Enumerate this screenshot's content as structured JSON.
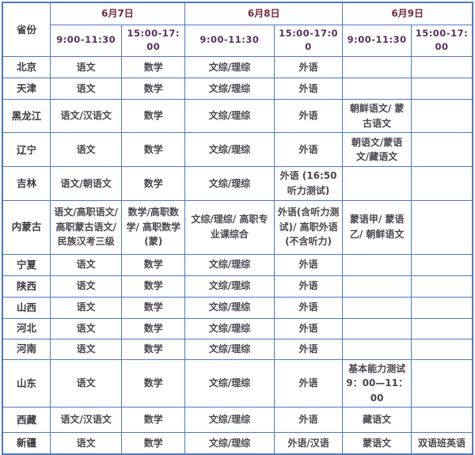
{
  "colors": {
    "border_blue": "#4a7ac2",
    "date_header_text": "#73293c",
    "time_header_text": "#55305a",
    "province_text": "#3d3742",
    "body_text": "#4a4650",
    "background": "#ffffff"
  },
  "table": {
    "corner_label": "省份",
    "date_groups": [
      {
        "label": "6月7日",
        "times": [
          "9:00-11:30",
          "15:00-17:00"
        ]
      },
      {
        "label": "6月8日",
        "times": [
          "9:00-11:30",
          "15:00-17:00"
        ]
      },
      {
        "label": "6月9日",
        "times": [
          "9:00-11:30",
          "15:00-17:00"
        ]
      }
    ],
    "rows": [
      {
        "province": "北京",
        "cells": [
          "语文",
          "数学",
          "文综/理综",
          "外语",
          "",
          ""
        ]
      },
      {
        "province": "天津",
        "cells": [
          "语文",
          "数学",
          "文综/理综",
          "外语",
          "",
          ""
        ]
      },
      {
        "province": "黑龙江",
        "cells": [
          "语文/汉语文",
          "数学",
          "文综/理综",
          "外语",
          "朝鲜语文/ 蒙古语文",
          ""
        ]
      },
      {
        "province": "辽宁",
        "cells": [
          "语文",
          "数学",
          "文综/理综",
          "外语",
          "朝语文/蒙语文/藏语文",
          ""
        ]
      },
      {
        "province": "吉林",
        "cells": [
          "语文/朝语文",
          "数学",
          "文综/理综",
          "外语 (16:50 听力测试)",
          "",
          ""
        ]
      },
      {
        "province": "内蒙古",
        "cells": [
          "语文/高职语文/ 高职蒙古语文/ 民族汉考三级",
          "数学/高职数学/ 高职数学(蒙)",
          "文综/理综/ 高职专业课综合",
          "外语(含听力测试)/ 高职外语(不含听力)",
          "蒙语甲/ 蒙语乙/ 朝鲜语文",
          ""
        ]
      },
      {
        "province": "宁夏",
        "cells": [
          "语文",
          "数学",
          "文综/理综",
          "外语",
          "",
          ""
        ]
      },
      {
        "province": "陕西",
        "cells": [
          "语文",
          "数学",
          "文综/理综",
          "外语",
          "",
          ""
        ]
      },
      {
        "province": "山西",
        "cells": [
          "语文",
          "数学",
          "文综/理综",
          "外语",
          "",
          ""
        ]
      },
      {
        "province": "河北",
        "cells": [
          "语文",
          "数学",
          "文综/理综",
          "外语",
          "",
          ""
        ]
      },
      {
        "province": "河南",
        "cells": [
          "语文",
          "数学",
          "文综/理综",
          "外语",
          "",
          ""
        ]
      },
      {
        "province": "山东",
        "cells": [
          "语文",
          "数学",
          "文综/理综",
          "外语",
          "基本能力测试9：00—11：00",
          ""
        ]
      },
      {
        "province": "西藏",
        "cells": [
          "语文/汉语文",
          "数学",
          "文综/理综",
          "外语",
          "藏语文",
          ""
        ]
      },
      {
        "province": "新疆",
        "cells": [
          "语文",
          "数学",
          "文综/理综",
          "外语/汉语",
          "蒙语文",
          "双语班英语"
        ]
      }
    ]
  }
}
